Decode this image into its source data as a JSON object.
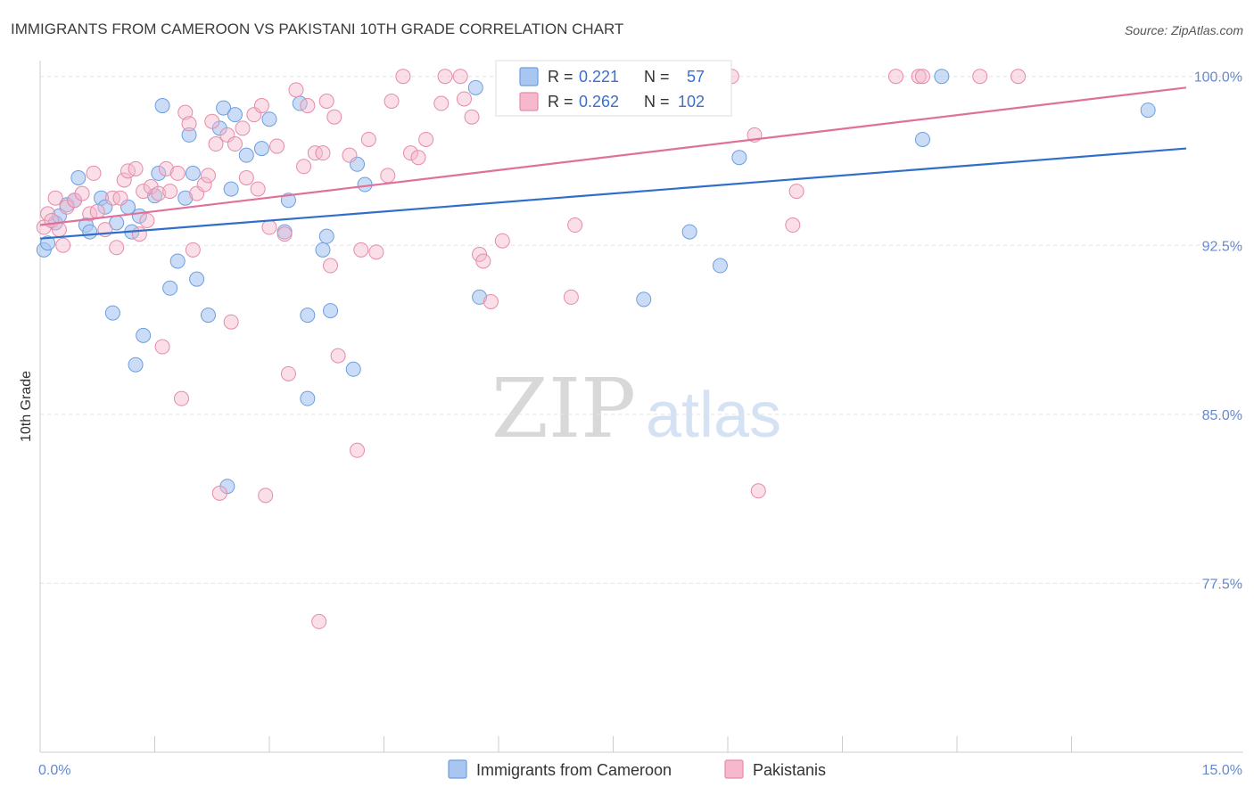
{
  "chart_data": {
    "type": "scatter",
    "title": "IMMIGRANTS FROM CAMEROON VS PAKISTANI 10TH GRADE CORRELATION CHART",
    "source": "Source: ZipAtlas.com",
    "watermark": {
      "zip": "ZIP",
      "atlas": "atlas"
    },
    "xlabel": "",
    "ylabel": "10th Grade",
    "xlim": [
      0,
      15
    ],
    "ylim": [
      70,
      100.7
    ],
    "x_tick_labels": [
      {
        "value": 0,
        "label": "0.0%"
      },
      {
        "value": 15,
        "label": "15.0%"
      }
    ],
    "y_tick_labels": [
      {
        "value": 100,
        "label": "100.0%"
      },
      {
        "value": 92.5,
        "label": "92.5%"
      },
      {
        "value": 85,
        "label": "85.0%"
      },
      {
        "value": 77.5,
        "label": "77.5%"
      }
    ],
    "x_minor_ticks": [
      1.5,
      3.0,
      4.5,
      6.0,
      7.5,
      9.0,
      10.5,
      12.0,
      13.5
    ],
    "grid": true,
    "legend_position": "top-center",
    "series": [
      {
        "name": "Immigrants from Cameroon",
        "color": "#6c9ee0",
        "fill": "#a9c6f0",
        "line_color": "#2f6fc9",
        "R": "0.221",
        "N": "57",
        "trend": [
          [
            0,
            92.8
          ],
          [
            15,
            96.8
          ]
        ],
        "points": [
          [
            0.05,
            92.3
          ],
          [
            0.1,
            92.6
          ],
          [
            0.2,
            93.5
          ],
          [
            0.25,
            93.8
          ],
          [
            0.35,
            94.3
          ],
          [
            0.45,
            94.5
          ],
          [
            0.5,
            95.5
          ],
          [
            0.6,
            93.4
          ],
          [
            0.65,
            93.1
          ],
          [
            0.8,
            94.6
          ],
          [
            0.85,
            94.2
          ],
          [
            0.95,
            89.5
          ],
          [
            1.0,
            93.5
          ],
          [
            1.15,
            94.2
          ],
          [
            1.2,
            93.1
          ],
          [
            1.25,
            87.2
          ],
          [
            1.3,
            93.8
          ],
          [
            1.35,
            88.5
          ],
          [
            1.5,
            94.7
          ],
          [
            1.55,
            95.7
          ],
          [
            1.6,
            98.7
          ],
          [
            1.7,
            90.6
          ],
          [
            1.8,
            91.8
          ],
          [
            1.9,
            94.6
          ],
          [
            1.95,
            97.4
          ],
          [
            2.0,
            95.7
          ],
          [
            2.05,
            91.0
          ],
          [
            2.2,
            89.4
          ],
          [
            2.35,
            97.7
          ],
          [
            2.4,
            98.6
          ],
          [
            2.45,
            81.8
          ],
          [
            2.5,
            95.0
          ],
          [
            2.55,
            98.3
          ],
          [
            2.7,
            96.5
          ],
          [
            2.9,
            96.8
          ],
          [
            3.0,
            98.1
          ],
          [
            3.2,
            93.1
          ],
          [
            3.25,
            94.5
          ],
          [
            3.4,
            98.8
          ],
          [
            3.5,
            89.4
          ],
          [
            3.5,
            85.7
          ],
          [
            3.7,
            92.3
          ],
          [
            3.75,
            92.9
          ],
          [
            3.8,
            89.6
          ],
          [
            4.1,
            87.0
          ],
          [
            4.15,
            96.1
          ],
          [
            4.25,
            95.2
          ],
          [
            5.7,
            99.5
          ],
          [
            5.75,
            90.2
          ],
          [
            6.5,
            99.7
          ],
          [
            7.9,
            90.1
          ],
          [
            8.5,
            93.1
          ],
          [
            8.9,
            91.6
          ],
          [
            9.15,
            96.4
          ],
          [
            11.55,
            97.2
          ],
          [
            11.8,
            100.0
          ],
          [
            14.5,
            98.5
          ]
        ]
      },
      {
        "name": "Pakistanis",
        "color": "#e68ba8",
        "fill": "#f5b8cc",
        "line_color": "#e0709a",
        "R": "0.262",
        "N": "102",
        "trend": [
          [
            0,
            93.4
          ],
          [
            15,
            99.5
          ]
        ],
        "points": [
          [
            0.05,
            93.3
          ],
          [
            0.1,
            93.9
          ],
          [
            0.15,
            93.6
          ],
          [
            0.2,
            94.6
          ],
          [
            0.25,
            93.2
          ],
          [
            0.3,
            92.5
          ],
          [
            0.35,
            94.2
          ],
          [
            0.45,
            94.5
          ],
          [
            0.55,
            94.8
          ],
          [
            0.65,
            93.9
          ],
          [
            0.7,
            95.7
          ],
          [
            0.75,
            94.0
          ],
          [
            0.85,
            93.2
          ],
          [
            0.95,
            94.6
          ],
          [
            1.0,
            92.4
          ],
          [
            1.05,
            94.6
          ],
          [
            1.1,
            95.4
          ],
          [
            1.15,
            95.8
          ],
          [
            1.25,
            95.9
          ],
          [
            1.3,
            93.0
          ],
          [
            1.35,
            94.9
          ],
          [
            1.4,
            93.6
          ],
          [
            1.45,
            95.1
          ],
          [
            1.55,
            94.8
          ],
          [
            1.6,
            88.0
          ],
          [
            1.65,
            95.9
          ],
          [
            1.7,
            94.9
          ],
          [
            1.8,
            95.7
          ],
          [
            1.85,
            85.7
          ],
          [
            1.9,
            98.4
          ],
          [
            1.95,
            97.9
          ],
          [
            2.0,
            92.3
          ],
          [
            2.05,
            94.8
          ],
          [
            2.15,
            95.2
          ],
          [
            2.2,
            95.6
          ],
          [
            2.25,
            98.0
          ],
          [
            2.3,
            97.0
          ],
          [
            2.35,
            81.5
          ],
          [
            2.45,
            97.4
          ],
          [
            2.5,
            89.1
          ],
          [
            2.55,
            97.0
          ],
          [
            2.65,
            97.7
          ],
          [
            2.7,
            95.5
          ],
          [
            2.8,
            98.3
          ],
          [
            2.85,
            95.0
          ],
          [
            2.9,
            98.7
          ],
          [
            2.95,
            81.4
          ],
          [
            3.0,
            93.3
          ],
          [
            3.1,
            96.9
          ],
          [
            3.2,
            93.0
          ],
          [
            3.25,
            86.8
          ],
          [
            3.35,
            99.4
          ],
          [
            3.45,
            96.0
          ],
          [
            3.5,
            98.7
          ],
          [
            3.6,
            96.6
          ],
          [
            3.65,
            75.8
          ],
          [
            3.7,
            96.6
          ],
          [
            3.75,
            98.9
          ],
          [
            3.8,
            91.6
          ],
          [
            3.85,
            98.2
          ],
          [
            3.9,
            87.6
          ],
          [
            4.05,
            96.5
          ],
          [
            4.15,
            83.4
          ],
          [
            4.2,
            92.3
          ],
          [
            4.3,
            97.2
          ],
          [
            4.4,
            92.2
          ],
          [
            4.55,
            95.6
          ],
          [
            4.6,
            98.9
          ],
          [
            4.75,
            100.0
          ],
          [
            4.85,
            96.6
          ],
          [
            4.95,
            96.4
          ],
          [
            5.05,
            97.2
          ],
          [
            5.25,
            98.8
          ],
          [
            5.3,
            100.0
          ],
          [
            5.5,
            100.0
          ],
          [
            5.55,
            99.0
          ],
          [
            5.65,
            98.2
          ],
          [
            5.75,
            92.1
          ],
          [
            5.8,
            91.8
          ],
          [
            5.9,
            90.0
          ],
          [
            6.05,
            92.7
          ],
          [
            6.25,
            100.0
          ],
          [
            6.55,
            100.0
          ],
          [
            6.95,
            90.2
          ],
          [
            7.0,
            93.4
          ],
          [
            7.2,
            100.0
          ],
          [
            7.55,
            100.0
          ],
          [
            7.85,
            100.0
          ],
          [
            8.35,
            100.0
          ],
          [
            8.6,
            100.0
          ],
          [
            8.7,
            100.0
          ],
          [
            9.05,
            100.0
          ],
          [
            9.35,
            97.4
          ],
          [
            9.4,
            81.6
          ],
          [
            9.85,
            93.4
          ],
          [
            9.9,
            94.9
          ],
          [
            11.2,
            100.0
          ],
          [
            11.5,
            100.0
          ],
          [
            11.55,
            100.0
          ],
          [
            12.3,
            100.0
          ],
          [
            12.8,
            100.0
          ],
          [
            8.85,
            100.0
          ]
        ]
      }
    ]
  }
}
